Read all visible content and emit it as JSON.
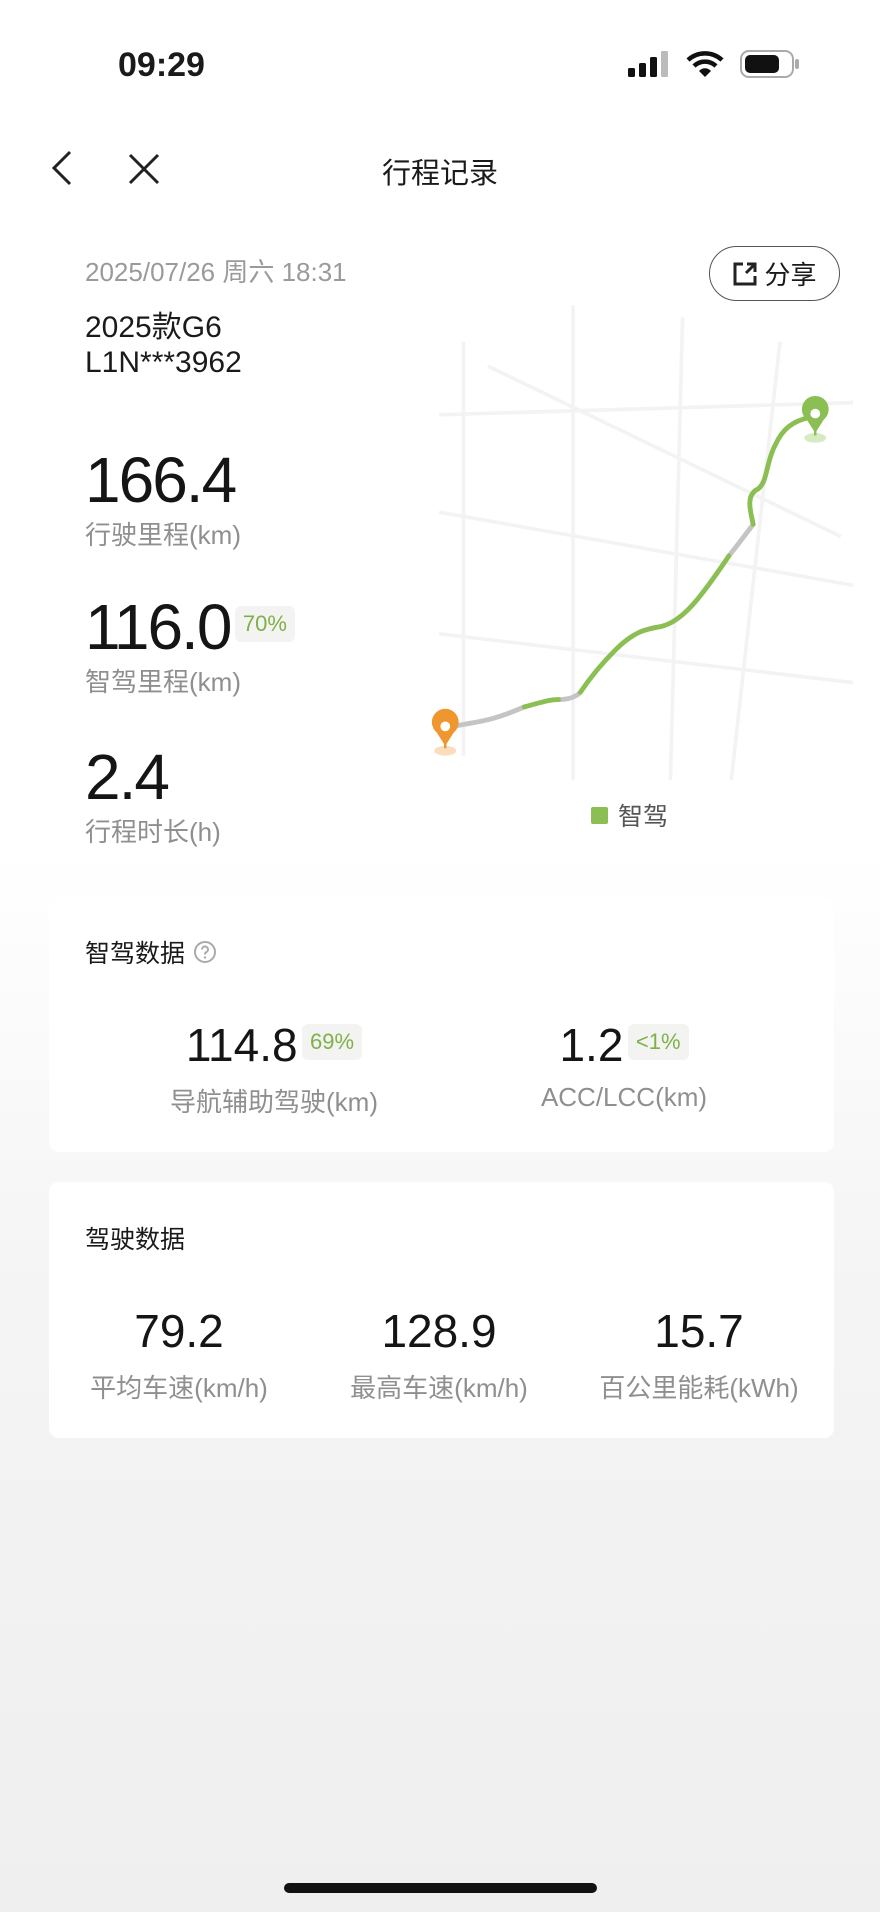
{
  "status_bar": {
    "time": "09:29"
  },
  "nav": {
    "title": "行程记录"
  },
  "trip": {
    "datetime": "2025/07/26 周六 18:31",
    "car_model": "2025款G6",
    "vin": "L1N***3962",
    "share_label": "分享"
  },
  "summary": [
    {
      "value": "166.4",
      "label": "行驶里程(km)"
    },
    {
      "value": "116.0",
      "badge": "70%",
      "label": "智驾里程(km)"
    },
    {
      "value": "2.4",
      "label": "行程时长(h)"
    }
  ],
  "map": {
    "legend": "智驾",
    "colors": {
      "smart_drive": "#8bbf54",
      "manual": "#c4c4c4",
      "start_pin": "#f0962e",
      "end_pin": "#8bbf54"
    }
  },
  "smart_card": {
    "title": "智驾数据",
    "stats": [
      {
        "value": "114.8",
        "badge": "69%",
        "label": "导航辅助驾驶(km)"
      },
      {
        "value": "1.2",
        "badge": "<1%",
        "label": "ACC/LCC(km)"
      }
    ]
  },
  "drive_card": {
    "title": "驾驶数据",
    "stats": [
      {
        "value": "79.2",
        "label": "平均车速(km/h)"
      },
      {
        "value": "128.9",
        "label": "最高车速(km/h)"
      },
      {
        "value": "15.7",
        "label": "百公里能耗(kWh)"
      }
    ]
  }
}
